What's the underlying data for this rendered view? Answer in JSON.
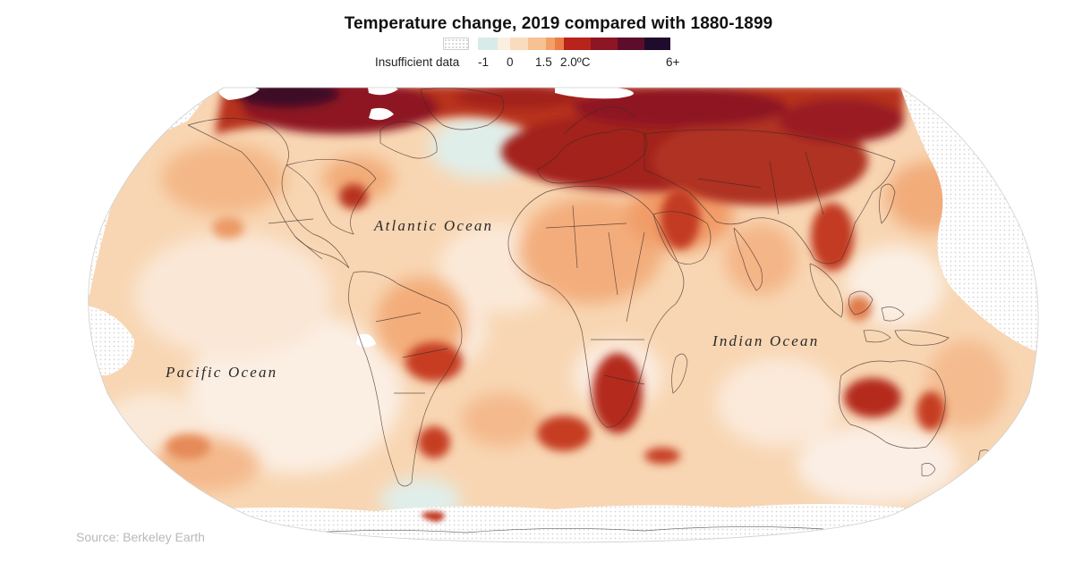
{
  "map": {
    "title": "Temperature change, 2019 compared with 1880-1899",
    "legend": {
      "nodata_label": "Insufficient data",
      "scale_labels": [
        "-1",
        "0",
        "1.5",
        "2.0ºC",
        "6+"
      ],
      "colors": [
        "#d9ebe8",
        "#fbefe2",
        "#f9dcbe",
        "#f6c193",
        "#f2a067",
        "#ea7d45",
        "#b8231a",
        "#8e1523",
        "#5c0d2b",
        "#1f0b2b"
      ]
    },
    "ocean_labels": {
      "atlantic": "Atlantic Ocean",
      "pacific": "Pacific Ocean",
      "indian": "Indian Ocean"
    },
    "source": "Source: Berkeley Earth"
  }
}
